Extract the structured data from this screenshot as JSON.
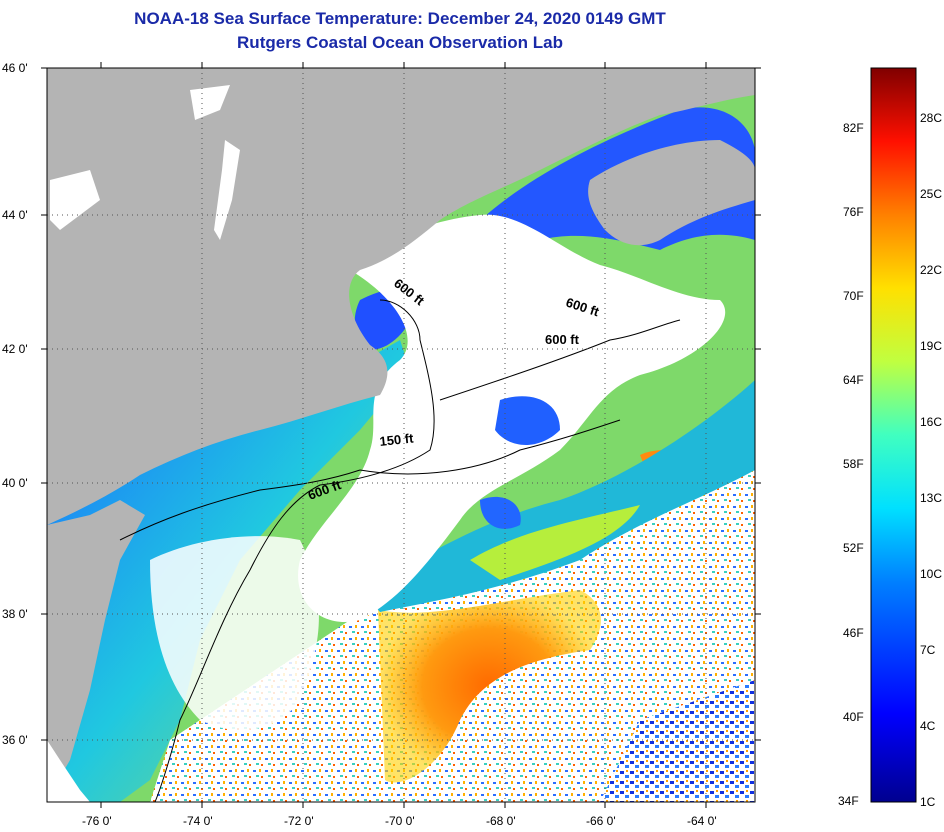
{
  "title": {
    "line1": "NOAA-18 Sea Surface Temperature:  December 24, 2020 0149 GMT",
    "line2": "Rutgers Coastal Ocean Observation Lab"
  },
  "axes": {
    "lat_labels": [
      "46 0'",
      "44 0'",
      "42 0'",
      "40 0'",
      "38 0'",
      "36 0'"
    ],
    "lon_labels": [
      "-76 0'",
      "-74 0'",
      "-72 0'",
      "-70 0'",
      "-68 0'",
      "-66 0'",
      "-64 0'"
    ]
  },
  "contours": {
    "labels": [
      "600 ft",
      "600 ft",
      "600 ft",
      "150 ft",
      "600 ft"
    ]
  },
  "colorbar": {
    "fahrenheit": [
      "82F",
      "76F",
      "70F",
      "64F",
      "58F",
      "52F",
      "46F",
      "40F",
      "34F"
    ],
    "celsius": [
      "28C",
      "25C",
      "22C",
      "19C",
      "16C",
      "13C",
      "10C",
      "7C",
      "4C",
      "1C"
    ]
  },
  "colors": {
    "land": "#b4b4b4",
    "cloud": "#ffffff",
    "title": "#1a2aa8"
  }
}
